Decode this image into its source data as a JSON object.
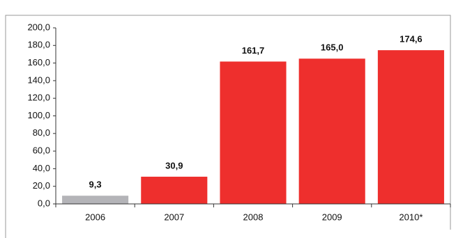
{
  "chart_data": {
    "type": "bar",
    "categories": [
      "2006",
      "2007",
      "2008",
      "2009",
      "2010*"
    ],
    "values": [
      9.3,
      30.9,
      161.7,
      165.0,
      174.6
    ],
    "value_labels": [
      "9,3",
      "30,9",
      "161,7",
      "165,0",
      "174,6"
    ],
    "colors": [
      "#b4b4b8",
      "#ee2f2d",
      "#ee2f2d",
      "#ee2f2d",
      "#ee2f2d"
    ],
    "ylim": [
      0,
      200
    ],
    "yticks": [
      {
        "value": 0,
        "label": "0,0"
      },
      {
        "value": 20,
        "label": "20,0"
      },
      {
        "value": 40,
        "label": "40,0"
      },
      {
        "value": 60,
        "label": "60,0"
      },
      {
        "value": 80,
        "label": "80,0"
      },
      {
        "value": 100,
        "label": "100,0"
      },
      {
        "value": 120,
        "label": "120,0"
      },
      {
        "value": 140,
        "label": "140,0"
      },
      {
        "value": 160,
        "label": "160,0"
      },
      {
        "value": 180,
        "label": "180,0"
      },
      {
        "value": 200,
        "label": "200,0"
      }
    ],
    "grid": false
  }
}
